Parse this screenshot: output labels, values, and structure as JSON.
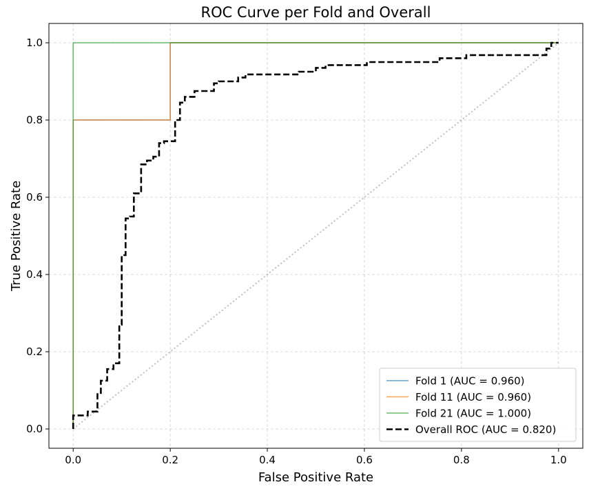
{
  "chart_data": {
    "type": "line",
    "title": "ROC Curve per Fold and Overall",
    "xlabel": "False Positive Rate",
    "ylabel": "True Positive Rate",
    "xlim": [
      -0.05,
      1.05
    ],
    "ylim": [
      -0.05,
      1.05
    ],
    "xticks": [
      "0.0",
      "0.2",
      "0.4",
      "0.6",
      "0.8",
      "1.0"
    ],
    "yticks": [
      "0.0",
      "0.2",
      "0.4",
      "0.6",
      "0.8",
      "1.0"
    ],
    "grid": true,
    "legend_position": "lower right",
    "series": [
      {
        "name": "Fold 1 (AUC = 0.960)",
        "color": "#1f77b4",
        "style": "solid",
        "points": [
          [
            0,
            0
          ],
          [
            0,
            0.8
          ],
          [
            0.2,
            0.8
          ],
          [
            0.2,
            1.0
          ],
          [
            1.0,
            1.0
          ]
        ]
      },
      {
        "name": "Fold 11 (AUC = 0.960)",
        "color": "#ff7f0e",
        "style": "solid",
        "points": [
          [
            0,
            0
          ],
          [
            0,
            0.8
          ],
          [
            0.2,
            0.8
          ],
          [
            0.2,
            1.0
          ],
          [
            1.0,
            1.0
          ]
        ]
      },
      {
        "name": "Fold 21 (AUC = 1.000)",
        "color": "#2ca02c",
        "style": "solid",
        "points": [
          [
            0,
            0
          ],
          [
            0,
            1.0
          ],
          [
            1.0,
            1.0
          ]
        ]
      },
      {
        "name": "Overall ROC (AUC = 0.820)",
        "color": "#000000",
        "style": "dashed",
        "points": [
          [
            0,
            0
          ],
          [
            0,
            0.035
          ],
          [
            0.03,
            0.035
          ],
          [
            0.03,
            0.045
          ],
          [
            0.05,
            0.045
          ],
          [
            0.05,
            0.09
          ],
          [
            0.057,
            0.09
          ],
          [
            0.057,
            0.125
          ],
          [
            0.07,
            0.125
          ],
          [
            0.07,
            0.155
          ],
          [
            0.083,
            0.155
          ],
          [
            0.083,
            0.17
          ],
          [
            0.095,
            0.17
          ],
          [
            0.095,
            0.27
          ],
          [
            0.1,
            0.27
          ],
          [
            0.1,
            0.45
          ],
          [
            0.108,
            0.45
          ],
          [
            0.108,
            0.545
          ],
          [
            0.117,
            0.545
          ],
          [
            0.117,
            0.55
          ],
          [
            0.125,
            0.55
          ],
          [
            0.125,
            0.61
          ],
          [
            0.14,
            0.61
          ],
          [
            0.14,
            0.685
          ],
          [
            0.152,
            0.685
          ],
          [
            0.152,
            0.695
          ],
          [
            0.165,
            0.695
          ],
          [
            0.165,
            0.705
          ],
          [
            0.177,
            0.705
          ],
          [
            0.177,
            0.74
          ],
          [
            0.187,
            0.74
          ],
          [
            0.187,
            0.745
          ],
          [
            0.21,
            0.745
          ],
          [
            0.21,
            0.8
          ],
          [
            0.22,
            0.8
          ],
          [
            0.22,
            0.845
          ],
          [
            0.23,
            0.845
          ],
          [
            0.23,
            0.86
          ],
          [
            0.25,
            0.86
          ],
          [
            0.25,
            0.875
          ],
          [
            0.27,
            0.875
          ],
          [
            0.29,
            0.875
          ],
          [
            0.29,
            0.895
          ],
          [
            0.3,
            0.895
          ],
          [
            0.3,
            0.9
          ],
          [
            0.34,
            0.9
          ],
          [
            0.34,
            0.91
          ],
          [
            0.355,
            0.91
          ],
          [
            0.355,
            0.918
          ],
          [
            0.465,
            0.918
          ],
          [
            0.465,
            0.925
          ],
          [
            0.5,
            0.925
          ],
          [
            0.5,
            0.935
          ],
          [
            0.52,
            0.935
          ],
          [
            0.52,
            0.942
          ],
          [
            0.605,
            0.942
          ],
          [
            0.605,
            0.95
          ],
          [
            0.755,
            0.95
          ],
          [
            0.755,
            0.96
          ],
          [
            0.81,
            0.96
          ],
          [
            0.81,
            0.968
          ],
          [
            0.975,
            0.968
          ],
          [
            0.975,
            0.985
          ],
          [
            0.985,
            0.985
          ],
          [
            0.985,
            1.0
          ],
          [
            1.0,
            1.0
          ]
        ]
      },
      {
        "name": "",
        "color": "#808080",
        "style": "dotted",
        "points": [
          [
            0,
            0
          ],
          [
            1.0,
            1.0
          ]
        ]
      }
    ]
  }
}
